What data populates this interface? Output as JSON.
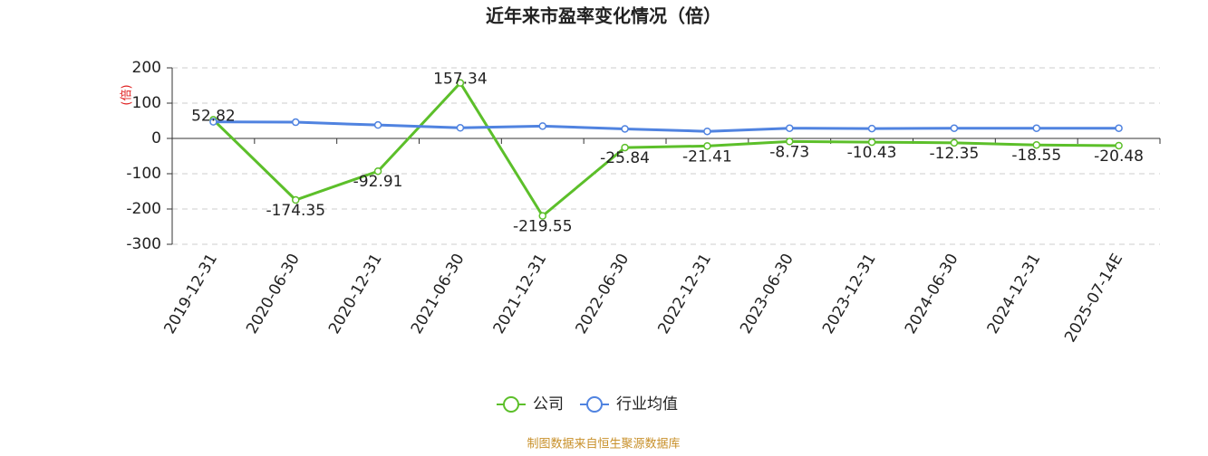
{
  "chart_data": {
    "type": "line",
    "title": "近年来市盈率变化情况（倍）",
    "y_label": "(倍)",
    "categories": [
      "2019-12-31",
      "2020-06-30",
      "2020-12-31",
      "2021-06-30",
      "2021-12-31",
      "2022-06-30",
      "2022-12-31",
      "2023-06-30",
      "2023-12-31",
      "2024-06-30",
      "2024-12-31",
      "2025-07-14E"
    ],
    "series": [
      {
        "name": "公司",
        "color": "#5cbf2a",
        "values": [
          52.82,
          -174.35,
          -92.91,
          157.34,
          -219.55,
          -25.84,
          -21.41,
          -8.73,
          -10.43,
          -12.35,
          -18.55,
          -20.48
        ]
      },
      {
        "name": "行业均值",
        "color": "#5083e0",
        "values": [
          47,
          46,
          38,
          30,
          35,
          27,
          20,
          29,
          28,
          29,
          29,
          29
        ]
      }
    ],
    "ylim": [
      -300,
      200
    ],
    "yticks": [
      -300,
      -200,
      -100,
      0,
      100,
      200
    ],
    "grid": true,
    "source": "制图数据来自恒生聚源数据库"
  }
}
